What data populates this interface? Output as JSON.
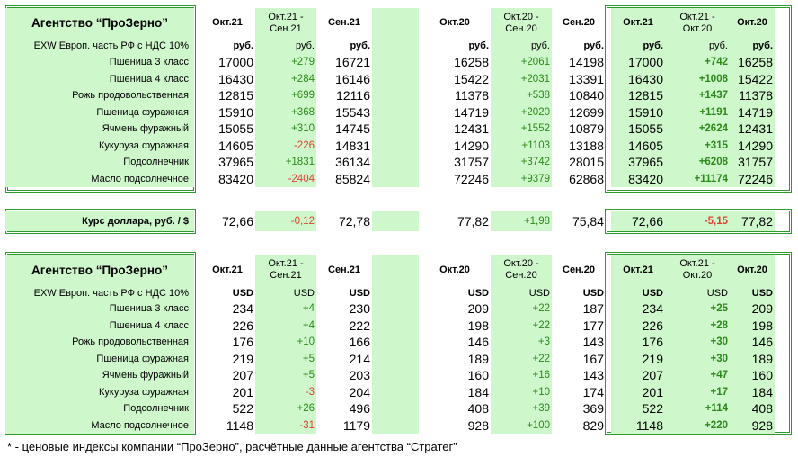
{
  "colors": {
    "frame": "#2e9a2e",
    "cell_green": "#cff7cc",
    "positive": "#2a8a18",
    "negative": "#e04030"
  },
  "table_rub": {
    "title": "Агентство “ПроЗерно”",
    "basis": "EXW Европ. часть РФ с НДС 10%",
    "headers": [
      "Окт.21",
      "Окт.21 -\nСен.21",
      "Сен.21",
      "Окт.20",
      "Окт.20 -\nСен.20",
      "Сен.20",
      "Окт.21",
      "Окт.21 -\nОкт.20",
      "Окт.20"
    ],
    "units": [
      "руб.",
      "руб.",
      "руб.",
      "руб.",
      "руб.",
      "руб.",
      "руб.",
      "руб.",
      "руб."
    ],
    "rows": [
      {
        "name": "Пшеница 3 класс",
        "values": [
          "17000",
          "+279",
          "16721",
          "16258",
          "+2061",
          "14198",
          "17000",
          "+742",
          "16258"
        ]
      },
      {
        "name": "Пшеница 4 класс",
        "values": [
          "16430",
          "+284",
          "16146",
          "15422",
          "+2031",
          "13391",
          "16430",
          "+1008",
          "15422"
        ]
      },
      {
        "name": "Рожь продовольственная",
        "values": [
          "12815",
          "+699",
          "12116",
          "11378",
          "+538",
          "10840",
          "12815",
          "+1437",
          "11378"
        ]
      },
      {
        "name": "Пшеница фуражная",
        "values": [
          "15910",
          "+368",
          "15543",
          "14719",
          "+2020",
          "12699",
          "15910",
          "+1191",
          "14719"
        ]
      },
      {
        "name": "Ячмень фуражный",
        "values": [
          "15055",
          "+310",
          "14745",
          "12431",
          "+1552",
          "10879",
          "15055",
          "+2624",
          "12431"
        ]
      },
      {
        "name": "Кукуруза фуражная",
        "values": [
          "14605",
          "-226",
          "14831",
          "14290",
          "+1103",
          "13188",
          "14605",
          "+315",
          "14290"
        ]
      },
      {
        "name": "Подсолнечник",
        "values": [
          "37965",
          "+1831",
          "36134",
          "31757",
          "+3742",
          "28015",
          "37965",
          "+6208",
          "31757"
        ]
      },
      {
        "name": "Масло подсолнечное",
        "values": [
          "83420",
          "-2404",
          "85824",
          "72246",
          "+9379",
          "62868",
          "83420",
          "+11174",
          "72246"
        ]
      }
    ]
  },
  "rate_row": {
    "name": "Курс доллара, руб. / $",
    "values": [
      "72,66",
      "-0,12",
      "72,78",
      "77,82",
      "+1,98",
      "75,84",
      "72,66",
      "-5,15",
      "77,82"
    ]
  },
  "table_usd": {
    "title": "Агентство “ПроЗерно”",
    "basis": "EXW Европ. часть РФ с НДС 10%",
    "headers": [
      "Окт.21",
      "Окт.21 -\nСен.21",
      "Сен.21",
      "Окт.20",
      "Окт.20 -\nСен.20",
      "Сен.20",
      "Окт.21",
      "Окт.21 -\nОкт.20",
      "Окт.20"
    ],
    "units": [
      "USD",
      "USD",
      "USD",
      "USD",
      "USD",
      "USD",
      "USD",
      "USD",
      "USD"
    ],
    "rows": [
      {
        "name": "Пшеница 3 класс",
        "values": [
          "234",
          "+4",
          "230",
          "209",
          "+22",
          "187",
          "234",
          "+25",
          "209"
        ]
      },
      {
        "name": "Пшеница 4 класс",
        "values": [
          "226",
          "+4",
          "222",
          "198",
          "+22",
          "177",
          "226",
          "+28",
          "198"
        ]
      },
      {
        "name": "Рожь продовольственная",
        "values": [
          "176",
          "+10",
          "166",
          "146",
          "+3",
          "143",
          "176",
          "+30",
          "146"
        ]
      },
      {
        "name": "Пшеница фуражная",
        "values": [
          "219",
          "+5",
          "214",
          "189",
          "+22",
          "167",
          "219",
          "+30",
          "189"
        ]
      },
      {
        "name": "Ячмень фуражный",
        "values": [
          "207",
          "+5",
          "203",
          "160",
          "+16",
          "143",
          "207",
          "+47",
          "160"
        ]
      },
      {
        "name": "Кукуруза фуражная",
        "values": [
          "201",
          "-3",
          "204",
          "184",
          "+10",
          "174",
          "201",
          "+17",
          "184"
        ]
      },
      {
        "name": "Подсолнечник",
        "values": [
          "522",
          "+26",
          "496",
          "408",
          "+39",
          "369",
          "522",
          "+114",
          "408"
        ]
      },
      {
        "name": "Масло подсолнечное",
        "values": [
          "1148",
          "-31",
          "1179",
          "928",
          "+100",
          "829",
          "1148",
          "+220",
          "928"
        ]
      }
    ]
  },
  "footnote": "* - ценовые индексы компании “ПроЗерно”, расчётные данные агентства “Стратег”"
}
